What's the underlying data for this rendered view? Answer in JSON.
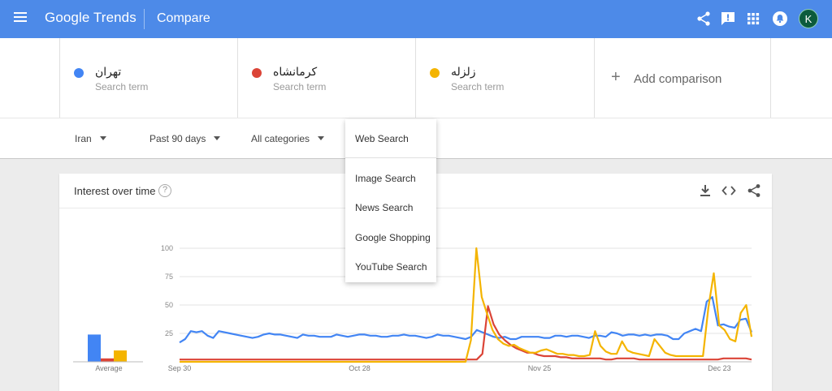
{
  "header": {
    "brand_google": "Google",
    "brand_trends": "Trends",
    "title": "Compare",
    "avatar_letter": "K",
    "icons": [
      "menu-icon",
      "share-icon",
      "feedback-icon",
      "apps-grid-icon",
      "notifications-icon"
    ]
  },
  "terms": [
    {
      "name": "تهران",
      "sub": "Search term",
      "color": "#4285f4"
    },
    {
      "name": "کرمانشاه",
      "sub": "Search term",
      "color": "#db4437"
    },
    {
      "name": "زلزله",
      "sub": "Search term",
      "color": "#f4b400"
    }
  ],
  "add_comparison": {
    "plus": "+",
    "label": "Add comparison"
  },
  "filters": {
    "region": "Iran",
    "period": "Past 90 days",
    "category": "All categories",
    "property": "Web Search"
  },
  "property_menu": {
    "selected": "Web Search",
    "options": [
      "Image Search",
      "News Search",
      "Google Shopping",
      "YouTube Search"
    ]
  },
  "card": {
    "title": "Interest over time",
    "help": "?",
    "icons": [
      "download-icon",
      "embed-icon",
      "share-icon"
    ]
  },
  "chart_data": {
    "type": "line",
    "ylim": [
      0,
      100
    ],
    "y_ticks": [
      25,
      50,
      75,
      100
    ],
    "x_tick_labels": [
      {
        "label": "Sep 30",
        "day": 0
      },
      {
        "label": "Oct 28",
        "day": 28
      },
      {
        "label": "Nov 25",
        "day": 56
      },
      {
        "label": "Dec 23",
        "day": 84
      }
    ],
    "x_range": [
      0,
      89
    ],
    "averages_label": "Average",
    "averages": [
      {
        "name": "تهران",
        "value": 24,
        "color": "#4285f4"
      },
      {
        "name": "کرمانشاه",
        "value": 3,
        "color": "#db4437"
      },
      {
        "name": "زلزله",
        "value": 10,
        "color": "#f4b400"
      }
    ],
    "series": [
      {
        "name": "تهران",
        "color": "#4285f4",
        "values": [
          17,
          20,
          27,
          26,
          27,
          23,
          21,
          27,
          26,
          25,
          24,
          23,
          22,
          21,
          22,
          24,
          25,
          24,
          24,
          23,
          22,
          21,
          24,
          23,
          23,
          22,
          22,
          22,
          24,
          23,
          22,
          23,
          24,
          24,
          23,
          23,
          22,
          22,
          23,
          23,
          24,
          23,
          23,
          22,
          21,
          22,
          24,
          23,
          23,
          22,
          21,
          20,
          22,
          28,
          26,
          24,
          22,
          21,
          22,
          20,
          20,
          22,
          22,
          22,
          22,
          21,
          21,
          23,
          23,
          22,
          23,
          23,
          22,
          21,
          23,
          23,
          22,
          26,
          25,
          23,
          24,
          24,
          23,
          24,
          23,
          24,
          24,
          23,
          20,
          20,
          25,
          27,
          29,
          27,
          53,
          57,
          32,
          33,
          31,
          30,
          37,
          38,
          26
        ]
      },
      {
        "name": "کرمانشاه",
        "color": "#db4437",
        "values": [
          2,
          2,
          2,
          2,
          2,
          2,
          2,
          2,
          2,
          2,
          2,
          2,
          2,
          2,
          2,
          2,
          2,
          2,
          2,
          2,
          2,
          2,
          2,
          2,
          2,
          2,
          2,
          2,
          2,
          2,
          2,
          2,
          2,
          2,
          2,
          2,
          2,
          2,
          2,
          2,
          2,
          2,
          2,
          2,
          2,
          2,
          2,
          2,
          2,
          2,
          2,
          2,
          2,
          2,
          7,
          49,
          33,
          24,
          19,
          15,
          12,
          10,
          8,
          8,
          6,
          5,
          5,
          5,
          4,
          4,
          3,
          3,
          3,
          3,
          3,
          3,
          2,
          2,
          3,
          3,
          3,
          3,
          2,
          2,
          2,
          2,
          2,
          2,
          2,
          2,
          2,
          2,
          2,
          2,
          2,
          2,
          2,
          3,
          3,
          3,
          3,
          3,
          2
        ]
      },
      {
        "name": "زلزله",
        "color": "#f4b400",
        "values": [
          0,
          0,
          0,
          0,
          0,
          0,
          0,
          0,
          0,
          0,
          0,
          0,
          0,
          0,
          0,
          0,
          0,
          0,
          0,
          0,
          0,
          0,
          0,
          0,
          0,
          0,
          0,
          0,
          0,
          0,
          0,
          0,
          0,
          0,
          0,
          0,
          0,
          0,
          0,
          0,
          0,
          0,
          0,
          0,
          0,
          0,
          0,
          0,
          0,
          0,
          0,
          0,
          0,
          0,
          19,
          100,
          57,
          42,
          28,
          20,
          16,
          14,
          15,
          12,
          10,
          8,
          8,
          10,
          11,
          9,
          7,
          7,
          6,
          6,
          5,
          5,
          6,
          27,
          14,
          9,
          7,
          7,
          18,
          10,
          8,
          7,
          6,
          5,
          20,
          14,
          8,
          6,
          5,
          5,
          5,
          5,
          5,
          5,
          48,
          78,
          32,
          28,
          20,
          18,
          43,
          50,
          22
        ]
      }
    ]
  }
}
